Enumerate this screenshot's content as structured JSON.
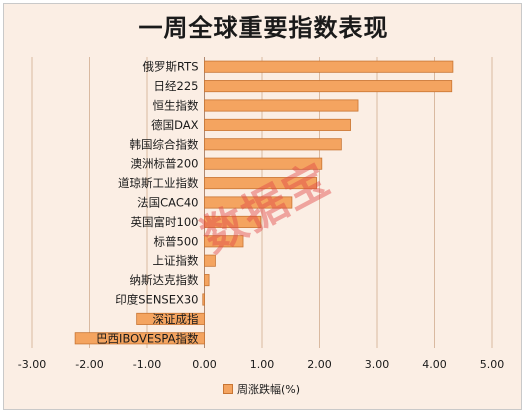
{
  "chart_data": {
    "type": "bar",
    "orientation": "horizontal",
    "title": "一周全球重要指数表现",
    "categories": [
      "俄罗斯RTS",
      "日经225",
      "恒生指数",
      "德国DAX",
      "韩国综合指数",
      "澳洲标普200",
      "道琼斯工业指数",
      "法国CAC40",
      "英国富时100",
      "标普500",
      "上证指数",
      "纳斯达克指数",
      "印度SENSEX30",
      "深证成指",
      "巴西IBOVESPA指数"
    ],
    "series": [
      {
        "name": "周涨跌幅(%)",
        "values": [
          4.32,
          4.3,
          2.67,
          2.54,
          2.38,
          2.04,
          1.95,
          1.52,
          0.98,
          0.67,
          0.19,
          0.08,
          -0.03,
          -1.18,
          -2.25
        ]
      }
    ],
    "xlim": [
      -3,
      5
    ],
    "xticks": [
      -3,
      -2,
      -1,
      0,
      1,
      2,
      3,
      4,
      5
    ],
    "xtick_labels": [
      "-3.00",
      "-2.00",
      "-1.00",
      "0.00",
      "1.00",
      "2.00",
      "3.00",
      "4.00",
      "5.00"
    ],
    "grid": true,
    "legend_position": "bottom",
    "colors": {
      "bar_fill": "#f4a460",
      "bar_stroke": "#c87533",
      "grid": "#d9b9a0",
      "background": "#fbeee4"
    }
  },
  "watermark": "数据宝"
}
